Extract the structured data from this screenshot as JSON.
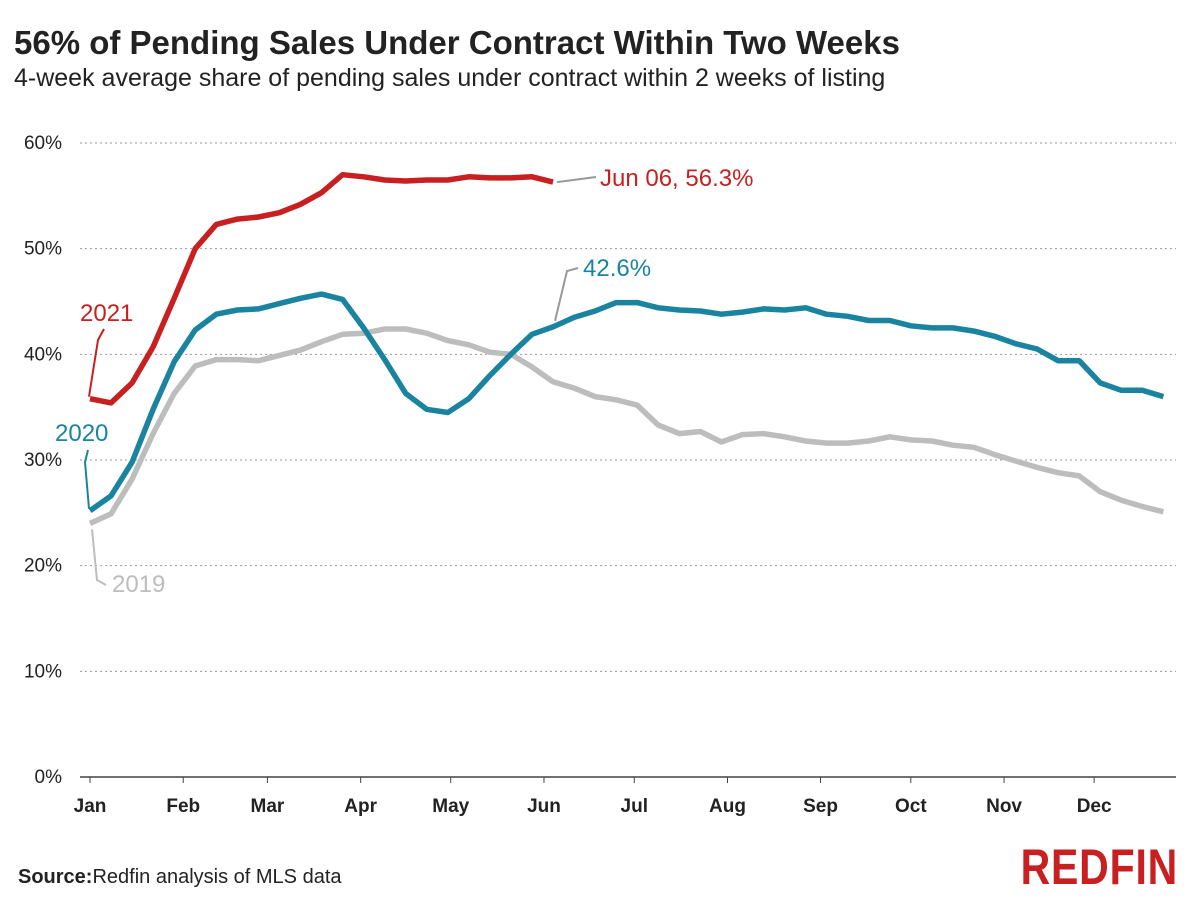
{
  "header": {
    "title": "56% of Pending Sales Under Contract Within Two Weeks",
    "subtitle": "4-week average share of pending sales under contract within 2 weeks of listing"
  },
  "footer": {
    "source_label": "Source:",
    "source_text": "Redfin analysis of MLS data",
    "logo_text": "REDFIN"
  },
  "colors": {
    "s2021": "#c82021",
    "s2020": "#1a84a0",
    "s2019": "#bdbdbd",
    "grid": "#999999"
  },
  "chart_data": {
    "type": "line",
    "title": "56% of Pending Sales Under Contract Within Two Weeks",
    "subtitle": "4-week average share of pending sales under contract within 2 weeks of listing",
    "x_unit": "week of year",
    "x_ticks": [
      {
        "label": "Jan",
        "week": 0
      },
      {
        "label": "Feb",
        "week": 4.43
      },
      {
        "label": "Mar",
        "week": 8.43
      },
      {
        "label": "Apr",
        "week": 12.86
      },
      {
        "label": "May",
        "week": 17.14
      },
      {
        "label": "Jun",
        "week": 21.57
      },
      {
        "label": "Jul",
        "week": 25.86
      },
      {
        "label": "Aug",
        "week": 30.29
      },
      {
        "label": "Sep",
        "week": 34.71
      },
      {
        "label": "Oct",
        "week": 39
      },
      {
        "label": "Nov",
        "week": 43.43
      },
      {
        "label": "Dec",
        "week": 47.71
      }
    ],
    "xlim": [
      0,
      51.6
    ],
    "ylim": [
      0,
      60
    ],
    "y_ticks": [
      {
        "value": 0,
        "label": "0%"
      },
      {
        "value": 10,
        "label": "10%"
      },
      {
        "value": 20,
        "label": "20%"
      },
      {
        "value": 30,
        "label": "30%"
      },
      {
        "value": 40,
        "label": "40%"
      },
      {
        "value": 50,
        "label": "50%"
      },
      {
        "value": 60,
        "label": "60%"
      }
    ],
    "grid": "horizontal dotted",
    "series": [
      {
        "name": "2019",
        "color": "#bdbdbd",
        "values": [
          24.0,
          24.9,
          28.2,
          32.5,
          36.3,
          38.9,
          39.5,
          39.5,
          39.4,
          39.9,
          40.4,
          41.2,
          41.9,
          42.0,
          42.4,
          42.4,
          42.0,
          41.3,
          40.9,
          40.2,
          40.0,
          38.8,
          37.4,
          36.8,
          36.0,
          35.7,
          35.2,
          33.3,
          32.5,
          32.7,
          31.7,
          32.4,
          32.5,
          32.2,
          31.8,
          31.6,
          31.6,
          31.8,
          32.2,
          31.9,
          31.8,
          31.4,
          31.2,
          30.5,
          29.9,
          29.3,
          28.8,
          28.5,
          27.0,
          26.2,
          25.6,
          25.1
        ]
      },
      {
        "name": "2020",
        "color": "#1a84a0",
        "values": [
          25.2,
          26.6,
          29.8,
          34.8,
          39.3,
          42.3,
          43.8,
          44.2,
          44.3,
          44.8,
          45.3,
          45.7,
          45.2,
          42.5,
          39.5,
          36.3,
          34.8,
          34.5,
          35.8,
          38.0,
          40.0,
          41.9,
          42.6,
          43.5,
          44.1,
          44.9,
          44.9,
          44.4,
          44.2,
          44.1,
          43.8,
          44.0,
          44.3,
          44.2,
          44.4,
          43.8,
          43.6,
          43.2,
          43.2,
          42.7,
          42.5,
          42.5,
          42.2,
          41.7,
          41.0,
          40.5,
          39.4,
          39.4,
          37.3,
          36.6,
          36.6,
          36.0
        ]
      },
      {
        "name": "2021",
        "color": "#c82021",
        "values": [
          35.8,
          35.4,
          37.3,
          40.7,
          45.3,
          50.0,
          52.3,
          52.8,
          53.0,
          53.4,
          54.2,
          55.3,
          57.0,
          56.8,
          56.5,
          56.4,
          56.5,
          56.5,
          56.8,
          56.7,
          56.7,
          56.8,
          56.3
        ]
      }
    ],
    "annotations": [
      {
        "series": "2021",
        "text": "2021",
        "color": "#c82021"
      },
      {
        "series": "2020",
        "text": "2020",
        "color": "#1a84a0"
      },
      {
        "series": "2019",
        "text": "2019",
        "color": "#bdbdbd"
      },
      {
        "series": "2021",
        "text": "Jun 06, 56.3%",
        "color": "#c82021"
      },
      {
        "series": "2020",
        "text": "42.6%",
        "color": "#1a84a0"
      }
    ]
  }
}
